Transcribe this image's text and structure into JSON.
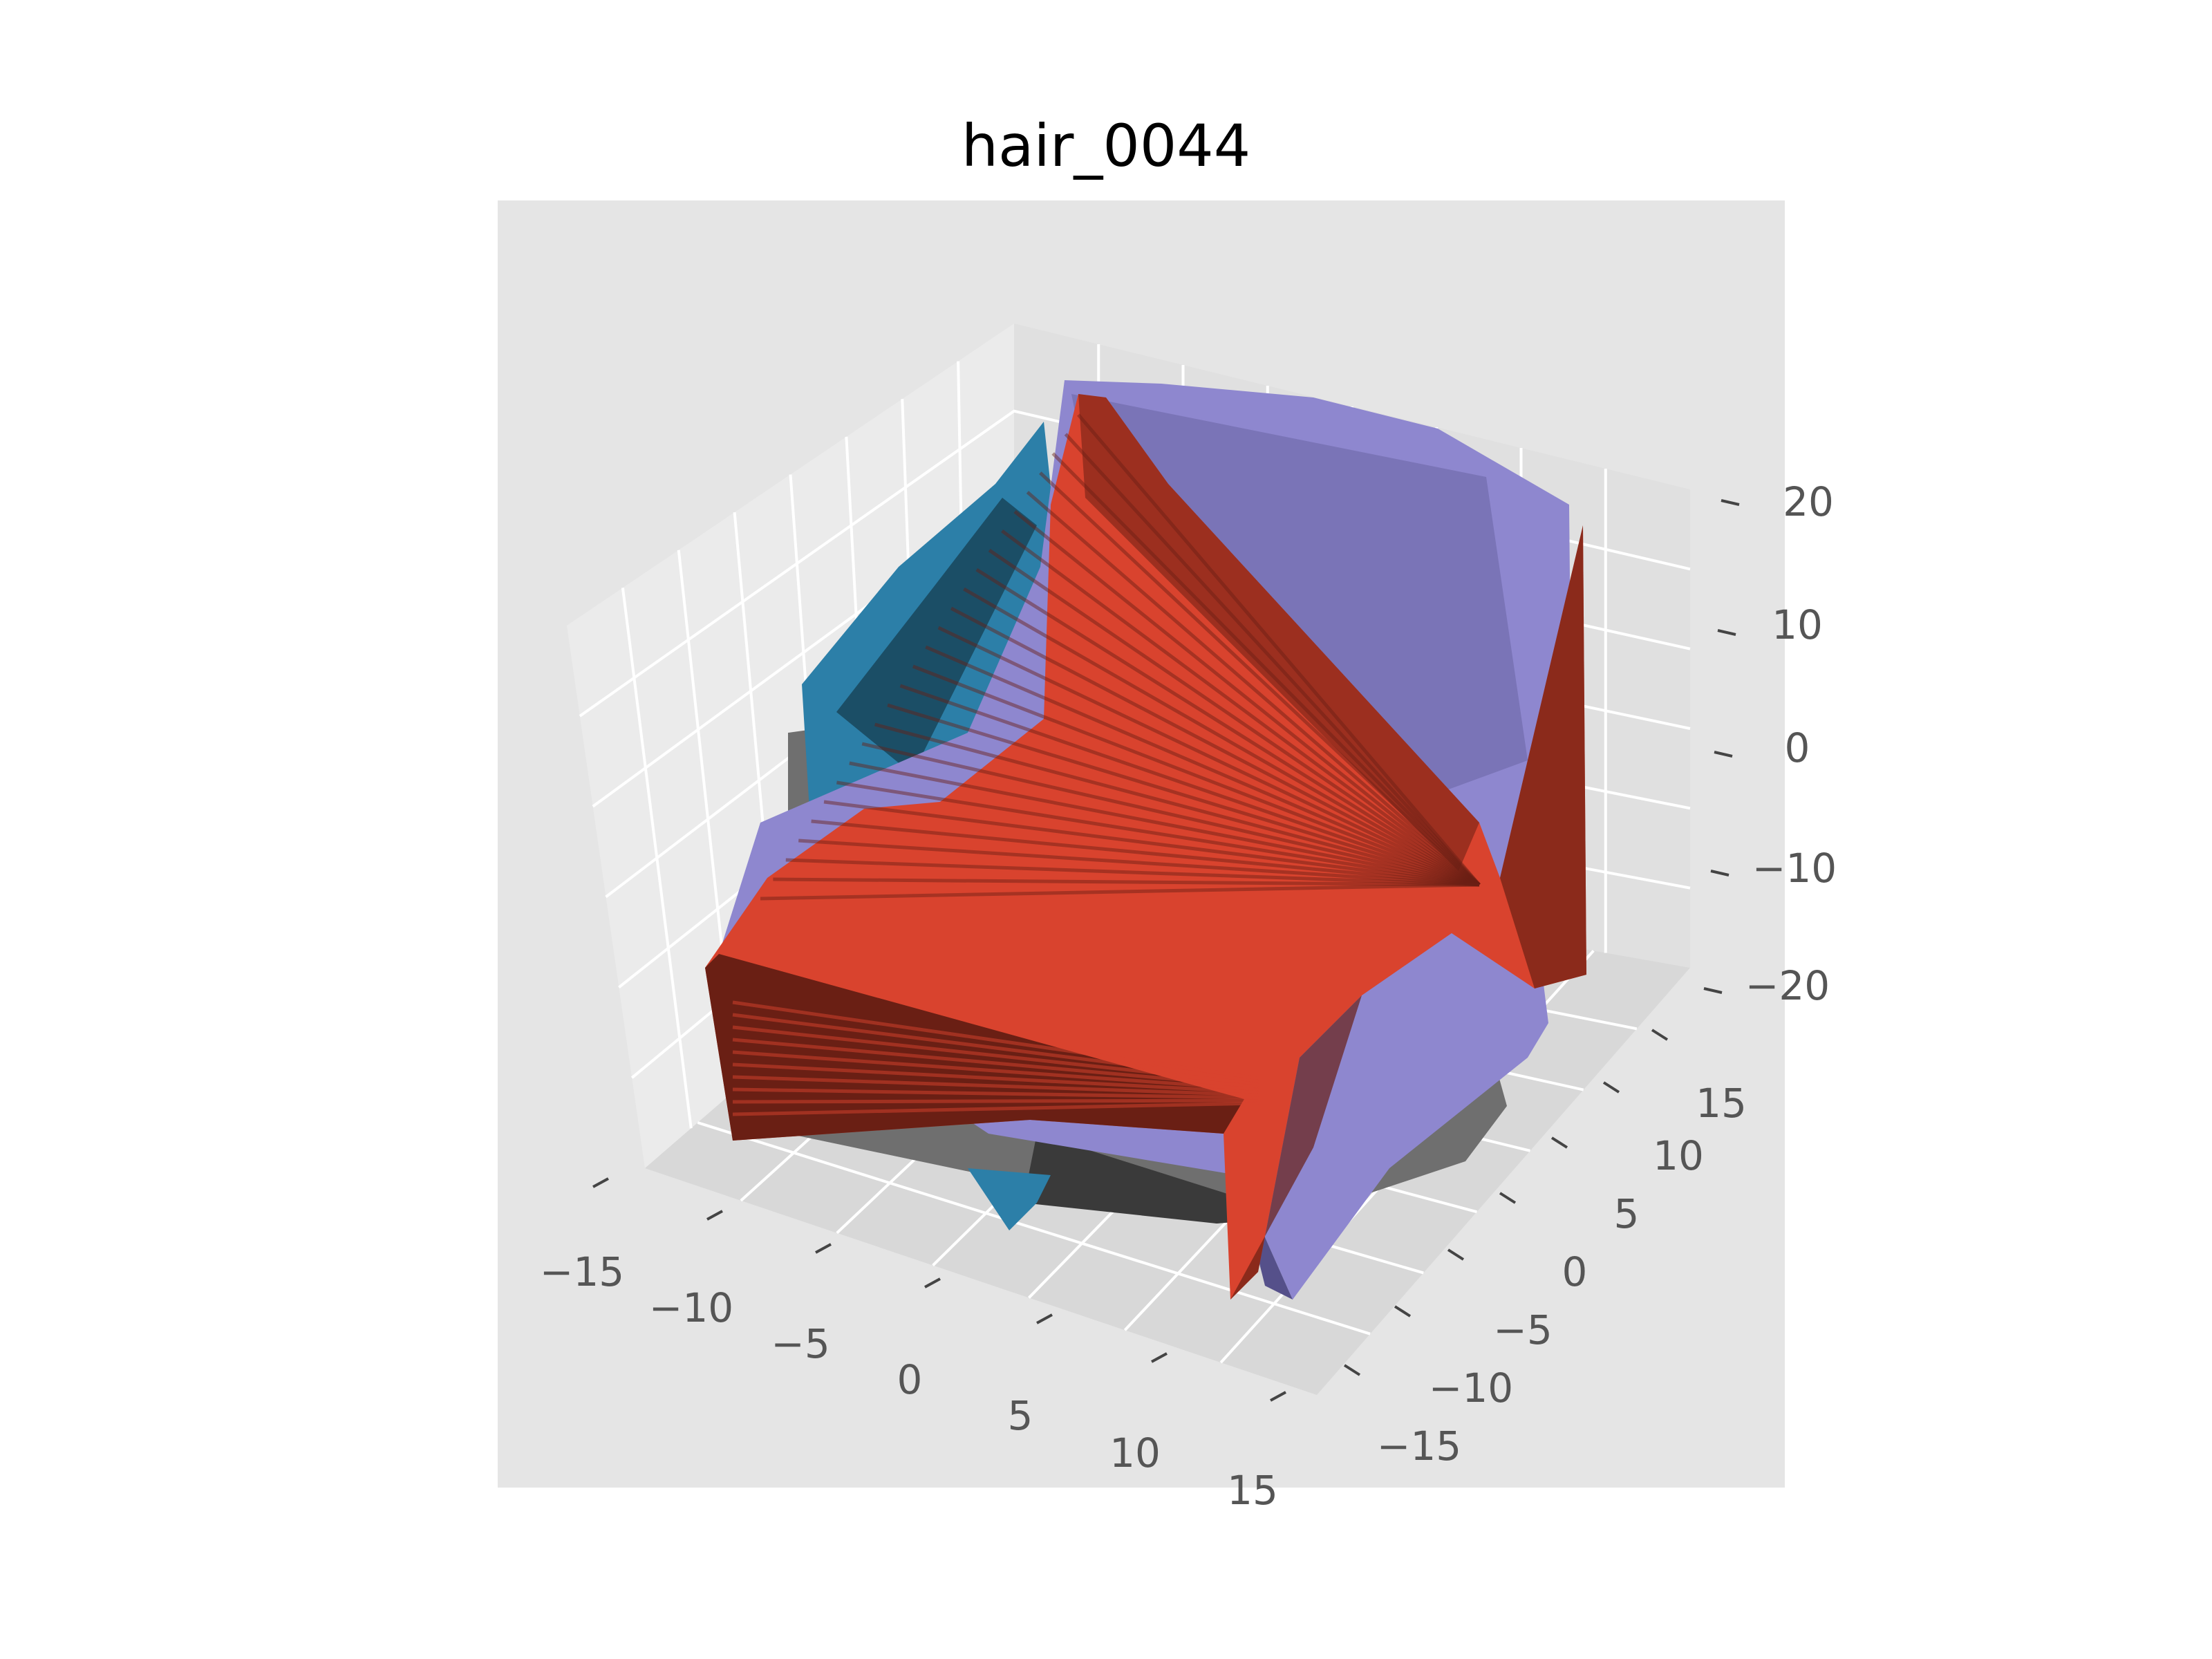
{
  "chart_data": {
    "type": "surface3d",
    "title": "hair_0044",
    "xlabel": "",
    "ylabel": "",
    "zlabel": "",
    "x_ticks": [
      "−15",
      "−10",
      "−5",
      "0",
      "5",
      "10",
      "15"
    ],
    "y_ticks": [
      "−15",
      "−10",
      "−5",
      "0",
      "5",
      "10",
      "15"
    ],
    "z_ticks": [
      "−20",
      "−10",
      "0",
      "10",
      "20"
    ],
    "xlim": [
      -17,
      17
    ],
    "ylim": [
      -17,
      17
    ],
    "zlim": [
      -24,
      24
    ],
    "grid": true,
    "colors": {
      "axes_background": "#e5e5e5",
      "pane_left": "#ebebeb",
      "pane_right": "#e0e0e0",
      "grid": "#ffffff",
      "surfaces": [
        "#6f6f6f",
        "#2c7fa8",
        "#8e87cf",
        "#d9432e"
      ],
      "surface_dark": [
        "#3a3a3a",
        "#1b4e66",
        "#55508a",
        "#6a1f14"
      ]
    },
    "surfaces": [
      "gray",
      "blue",
      "lavender",
      "red"
    ]
  }
}
